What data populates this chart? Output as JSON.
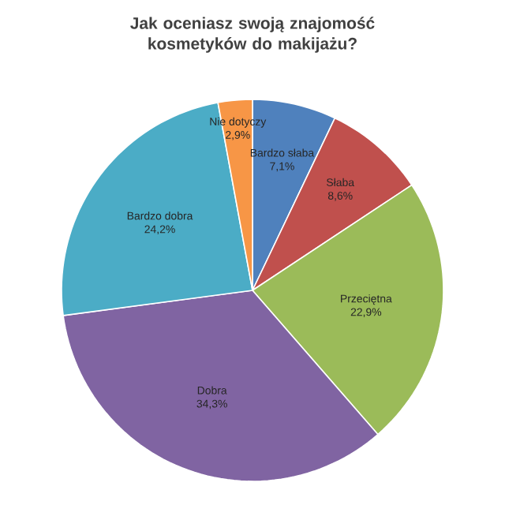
{
  "chart_data": {
    "type": "pie",
    "title": "Jak oceniasz swoją znajomość kosmetyków do makijażu?",
    "categories": [
      "Bardzo słaba",
      "Słaba",
      "Przeciętna",
      "Dobra",
      "Bardzo dobra",
      "Nie dotyczy"
    ],
    "values": [
      7.1,
      8.6,
      22.9,
      34.3,
      24.2,
      2.9
    ],
    "value_labels": [
      "7,1%",
      "8,6%",
      "22,9%",
      "34,3%",
      "24,2%",
      "2,9%"
    ],
    "colors": [
      "#4f81bd",
      "#c0504d",
      "#9bbb59",
      "#8064a2",
      "#4bacc6",
      "#f79646"
    ]
  }
}
